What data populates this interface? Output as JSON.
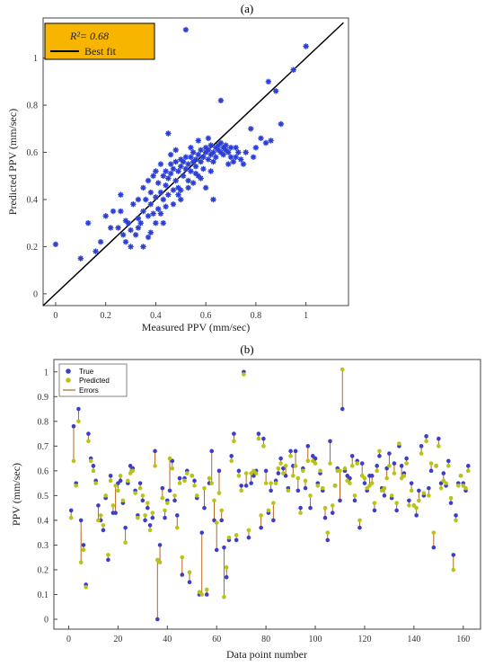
{
  "chart_data": [
    {
      "panel_label": "(a)",
      "type": "scatter",
      "xlabel": "Measured PPV (mm/sec)",
      "ylabel": "Predicted PPV (mm/sec)",
      "xlim": [
        -0.05,
        1.17
      ],
      "ylim": [
        -0.05,
        1.17
      ],
      "xticks": [
        "0",
        "0.2",
        "0.4",
        "0.6",
        "0.8",
        "1"
      ],
      "yticks": [
        "0",
        "0.2",
        "0.4",
        "0.6",
        "0.8",
        "1"
      ],
      "legend": {
        "position": "top-left",
        "r2_label": "R²= 0.68",
        "line_label": "Best fit"
      },
      "colors": {
        "points": "#2b3fd6",
        "fit_line": "#000000",
        "legend_bg": "#f7b500"
      },
      "fit_line": {
        "x": [
          -0.05,
          1.15
        ],
        "y": [
          -0.05,
          1.15
        ]
      },
      "points": [
        [
          0.0,
          0.21
        ],
        [
          0.1,
          0.15
        ],
        [
          0.13,
          0.3
        ],
        [
          0.16,
          0.18
        ],
        [
          0.18,
          0.22
        ],
        [
          0.2,
          0.33
        ],
        [
          0.22,
          0.28
        ],
        [
          0.23,
          0.35
        ],
        [
          0.25,
          0.28
        ],
        [
          0.26,
          0.35
        ],
        [
          0.27,
          0.25
        ],
        [
          0.28,
          0.22
        ],
        [
          0.29,
          0.3
        ],
        [
          0.3,
          0.27
        ],
        [
          0.31,
          0.38
        ],
        [
          0.32,
          0.25
        ],
        [
          0.33,
          0.32
        ],
        [
          0.33,
          0.4
        ],
        [
          0.34,
          0.3
        ],
        [
          0.35,
          0.35
        ],
        [
          0.35,
          0.45
        ],
        [
          0.36,
          0.4
        ],
        [
          0.37,
          0.33
        ],
        [
          0.37,
          0.48
        ],
        [
          0.38,
          0.38
        ],
        [
          0.38,
          0.43
        ],
        [
          0.39,
          0.5
        ],
        [
          0.39,
          0.34
        ],
        [
          0.4,
          0.41
        ],
        [
          0.4,
          0.52
        ],
        [
          0.41,
          0.36
        ],
        [
          0.41,
          0.47
        ],
        [
          0.42,
          0.43
        ],
        [
          0.42,
          0.55
        ],
        [
          0.43,
          0.4
        ],
        [
          0.43,
          0.5
        ],
        [
          0.44,
          0.46
        ],
        [
          0.44,
          0.52
        ],
        [
          0.45,
          0.42
        ],
        [
          0.45,
          0.49
        ],
        [
          0.46,
          0.55
        ],
        [
          0.46,
          0.51
        ],
        [
          0.47,
          0.44
        ],
        [
          0.47,
          0.53
        ],
        [
          0.48,
          0.48
        ],
        [
          0.48,
          0.56
        ],
        [
          0.49,
          0.52
        ],
        [
          0.49,
          0.45
        ],
        [
          0.5,
          0.54
        ],
        [
          0.5,
          0.57
        ],
        [
          0.51,
          0.5
        ],
        [
          0.51,
          0.56
        ],
        [
          0.52,
          0.53
        ],
        [
          0.52,
          0.58
        ],
        [
          0.53,
          0.55
        ],
        [
          0.53,
          0.48
        ],
        [
          0.54,
          0.58
        ],
        [
          0.54,
          0.52
        ],
        [
          0.55,
          0.56
        ],
        [
          0.55,
          0.6
        ],
        [
          0.56,
          0.54
        ],
        [
          0.56,
          0.57
        ],
        [
          0.57,
          0.59
        ],
        [
          0.57,
          0.5
        ],
        [
          0.58,
          0.61
        ],
        [
          0.58,
          0.56
        ],
        [
          0.59,
          0.58
        ],
        [
          0.6,
          0.6
        ],
        [
          0.6,
          0.62
        ],
        [
          0.61,
          0.57
        ],
        [
          0.61,
          0.61
        ],
        [
          0.62,
          0.59
        ],
        [
          0.62,
          0.63
        ],
        [
          0.63,
          0.6
        ],
        [
          0.63,
          0.56
        ],
        [
          0.64,
          0.62
        ],
        [
          0.65,
          0.61
        ],
        [
          0.65,
          0.63
        ],
        [
          0.66,
          0.6
        ],
        [
          0.66,
          0.64
        ],
        [
          0.67,
          0.62
        ],
        [
          0.67,
          0.59
        ],
        [
          0.68,
          0.63
        ],
        [
          0.68,
          0.61
        ],
        [
          0.69,
          0.6
        ],
        [
          0.7,
          0.62
        ],
        [
          0.7,
          0.58
        ],
        [
          0.71,
          0.56
        ],
        [
          0.72,
          0.58
        ],
        [
          0.73,
          0.6
        ],
        [
          0.74,
          0.57
        ],
        [
          0.75,
          0.55
        ],
        [
          0.78,
          0.7
        ],
        [
          0.8,
          0.62
        ],
        [
          0.82,
          0.66
        ],
        [
          0.84,
          0.64
        ],
        [
          0.86,
          0.65
        ],
        [
          0.88,
          0.86
        ],
        [
          0.9,
          0.72
        ],
        [
          0.95,
          0.95
        ],
        [
          1.0,
          1.05
        ],
        [
          0.52,
          1.12
        ],
        [
          0.45,
          0.68
        ],
        [
          0.6,
          0.45
        ],
        [
          0.63,
          0.4
        ],
        [
          0.66,
          0.82
        ],
        [
          0.58,
          0.49
        ],
        [
          0.62,
          0.52
        ],
        [
          0.5,
          0.44
        ],
        [
          0.55,
          0.47
        ],
        [
          0.35,
          0.2
        ],
        [
          0.37,
          0.24
        ],
        [
          0.4,
          0.3
        ],
        [
          0.42,
          0.34
        ],
        [
          0.3,
          0.2
        ],
        [
          0.33,
          0.28
        ],
        [
          0.5,
          0.4
        ],
        [
          0.53,
          0.45
        ],
        [
          0.56,
          0.51
        ],
        [
          0.59,
          0.53
        ],
        [
          0.47,
          0.38
        ],
        [
          0.44,
          0.37
        ],
        [
          0.49,
          0.42
        ],
        [
          0.64,
          0.58
        ],
        [
          0.69,
          0.55
        ],
        [
          0.72,
          0.62
        ],
        [
          0.76,
          0.6
        ],
        [
          0.79,
          0.58
        ],
        [
          0.85,
          0.9
        ],
        [
          0.57,
          0.65
        ],
        [
          0.61,
          0.66
        ],
        [
          0.46,
          0.59
        ],
        [
          0.48,
          0.61
        ],
        [
          0.54,
          0.62
        ],
        [
          0.43,
          0.3
        ],
        [
          0.38,
          0.26
        ],
        [
          0.26,
          0.42
        ],
        [
          0.28,
          0.31
        ]
      ]
    },
    {
      "panel_label": "(b)",
      "type": "scatter",
      "xlabel": "Data point number",
      "ylabel": "PPV (mm/sec)",
      "xlim": [
        -6,
        167
      ],
      "ylim": [
        -0.04,
        1.05
      ],
      "xticks": [
        "0",
        "20",
        "40",
        "60",
        "80",
        "100",
        "120",
        "140",
        "160"
      ],
      "yticks": [
        "0",
        "0.1",
        "0.2",
        "0.3",
        "0.4",
        "0.5",
        "0.6",
        "0.7",
        "0.8",
        "0.9",
        "1"
      ],
      "legend": {
        "position": "top-left",
        "entries": [
          "True",
          "Predicted",
          "Errors"
        ]
      },
      "colors": {
        "true": "#3b3ec8",
        "predicted": "#b8c414",
        "errors": "#b5651d"
      },
      "true": [
        0.44,
        0.78,
        0.55,
        0.85,
        0.4,
        0.3,
        0.14,
        0.75,
        0.65,
        0.62,
        0.56,
        0.46,
        0.4,
        0.36,
        0.49,
        0.24,
        0.58,
        0.43,
        0.43,
        0.55,
        0.56,
        0.47,
        0.37,
        0.55,
        0.62,
        0.61,
        0.52,
        0.42,
        0.55,
        0.48,
        0.4,
        0.45,
        0.38,
        0.41,
        0.68,
        0.0,
        0.3,
        0.53,
        0.41,
        0.48,
        0.52,
        0.64,
        0.48,
        0.42,
        0.57,
        0.18,
        0.57,
        0.6,
        0.15,
        0.58,
        0.56,
        0.49,
        0.1,
        0.35,
        0.45,
        0.1,
        0.55,
        0.68,
        0.4,
        0.28,
        0.6,
        0.4,
        0.29,
        0.17,
        0.32,
        0.66,
        0.75,
        0.32,
        0.6,
        0.54,
        1.0,
        0.54,
        0.33,
        0.55,
        0.58,
        0.6,
        0.75,
        0.37,
        0.73,
        0.6,
        0.43,
        0.52,
        0.4,
        0.56,
        0.59,
        0.65,
        0.61,
        0.58,
        0.53,
        0.68,
        0.62,
        0.68,
        0.52,
        0.45,
        0.61,
        0.53,
        0.7,
        0.45,
        0.66,
        0.65,
        0.55,
        0.59,
        0.52,
        0.41,
        0.32,
        0.72,
        0.43,
        0.54,
        0.61,
        0.48,
        0.85,
        0.6,
        0.58,
        0.57,
        0.66,
        0.48,
        0.64,
        0.37,
        0.63,
        0.55,
        0.52,
        0.58,
        0.58,
        0.44,
        0.62,
        0.66,
        0.53,
        0.5,
        0.61,
        0.67,
        0.49,
        0.63,
        0.44,
        0.7,
        0.62,
        0.59,
        0.65,
        0.48,
        0.55,
        0.46,
        0.42,
        0.52,
        0.7,
        0.5,
        0.74,
        0.53,
        0.6,
        0.29,
        0.62,
        0.73,
        0.55,
        0.59,
        0.54,
        0.64,
        0.47,
        0.26,
        0.42,
        0.55,
        0.58,
        0.55,
        0.52,
        0.62
      ],
      "predicted": [
        0.41,
        0.64,
        0.54,
        0.8,
        0.23,
        0.28,
        0.13,
        0.72,
        0.64,
        0.6,
        0.55,
        0.4,
        0.42,
        0.38,
        0.5,
        0.26,
        0.56,
        0.46,
        0.54,
        0.52,
        0.58,
        0.48,
        0.31,
        0.56,
        0.59,
        0.6,
        0.51,
        0.41,
        0.53,
        0.5,
        0.42,
        0.47,
        0.36,
        0.43,
        0.62,
        0.24,
        0.23,
        0.49,
        0.44,
        0.47,
        0.65,
        0.61,
        0.5,
        0.37,
        0.55,
        0.25,
        0.56,
        0.59,
        0.19,
        0.58,
        0.54,
        0.5,
        0.11,
        0.1,
        0.53,
        0.12,
        0.57,
        0.55,
        0.48,
        0.39,
        0.51,
        0.44,
        0.09,
        0.21,
        0.33,
        0.64,
        0.72,
        0.34,
        0.58,
        0.52,
        0.99,
        0.59,
        0.36,
        0.59,
        0.6,
        0.59,
        0.73,
        0.42,
        0.7,
        0.55,
        0.44,
        0.55,
        0.47,
        0.55,
        0.61,
        0.63,
        0.59,
        0.62,
        0.52,
        0.66,
        0.58,
        0.62,
        0.57,
        0.43,
        0.6,
        0.56,
        0.64,
        0.5,
        0.64,
        0.63,
        0.54,
        0.6,
        0.53,
        0.45,
        0.35,
        0.63,
        0.46,
        0.54,
        0.6,
        0.6,
        1.01,
        0.61,
        0.56,
        0.55,
        0.62,
        0.5,
        0.63,
        0.4,
        0.58,
        0.57,
        0.53,
        0.54,
        0.55,
        0.47,
        0.6,
        0.68,
        0.52,
        0.53,
        0.57,
        0.62,
        0.5,
        0.59,
        0.47,
        0.71,
        0.57,
        0.58,
        0.63,
        0.46,
        0.52,
        0.46,
        0.45,
        0.48,
        0.67,
        0.51,
        0.72,
        0.5,
        0.63,
        0.35,
        0.62,
        0.7,
        0.53,
        0.56,
        0.55,
        0.62,
        0.49,
        0.2,
        0.4,
        0.54,
        0.58,
        0.54,
        0.53,
        0.6
      ]
    }
  ]
}
